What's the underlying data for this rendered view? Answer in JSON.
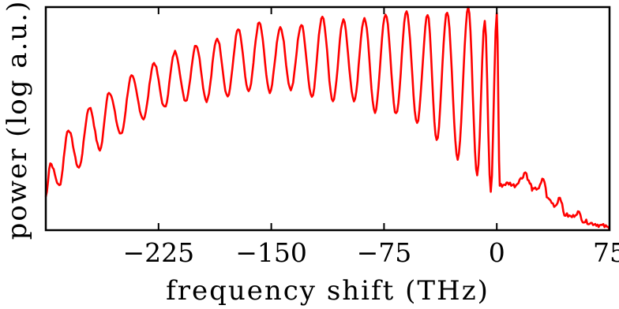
{
  "chart_data": {
    "type": "line",
    "xlabel": "frequency shift (THz)",
    "ylabel": "power (log a.u.)",
    "xlim": [
      -300,
      75
    ],
    "ylim": [
      0,
      1
    ],
    "x_ticks": [
      {
        "value": -225,
        "label": "−225"
      },
      {
        "value": -150,
        "label": "−150"
      },
      {
        "value": -75,
        "label": "−75"
      },
      {
        "value": 0,
        "label": "0"
      },
      {
        "value": 75,
        "label": "75"
      }
    ],
    "y_ticks": [],
    "grid": false,
    "legend": "none",
    "series": [
      {
        "color": "#ff0000",
        "peaks": [
          {
            "x": -297,
            "y": 0.3
          },
          {
            "x": -285,
            "y": 0.45
          },
          {
            "x": -271,
            "y": 0.55
          },
          {
            "x": -258,
            "y": 0.62
          },
          {
            "x": -243,
            "y": 0.69
          },
          {
            "x": -228,
            "y": 0.75
          },
          {
            "x": -214,
            "y": 0.8
          },
          {
            "x": -200,
            "y": 0.83
          },
          {
            "x": -186,
            "y": 0.86
          },
          {
            "x": -172,
            "y": 0.9
          },
          {
            "x": -158,
            "y": 0.93
          },
          {
            "x": -144,
            "y": 0.91
          },
          {
            "x": -130,
            "y": 0.92
          },
          {
            "x": -116,
            "y": 0.96
          },
          {
            "x": -102,
            "y": 0.94
          },
          {
            "x": -88,
            "y": 0.95
          },
          {
            "x": -74,
            "y": 0.97
          },
          {
            "x": -60,
            "y": 0.98
          },
          {
            "x": -46,
            "y": 0.97
          },
          {
            "x": -33,
            "y": 0.98
          },
          {
            "x": -19,
            "y": 1.0
          },
          {
            "x": -8,
            "y": 0.94
          },
          {
            "x": 0,
            "y": 0.97
          }
        ],
        "troughs": [
          {
            "x": -291,
            "y": 0.2
          },
          {
            "x": -278,
            "y": 0.28
          },
          {
            "x": -264,
            "y": 0.36
          },
          {
            "x": -250,
            "y": 0.43
          },
          {
            "x": -235,
            "y": 0.5
          },
          {
            "x": -221,
            "y": 0.55
          },
          {
            "x": -207,
            "y": 0.58
          },
          {
            "x": -193,
            "y": 0.58
          },
          {
            "x": -179,
            "y": 0.6
          },
          {
            "x": -165,
            "y": 0.62
          },
          {
            "x": -151,
            "y": 0.62
          },
          {
            "x": -137,
            "y": 0.63
          },
          {
            "x": -123,
            "y": 0.6
          },
          {
            "x": -109,
            "y": 0.58
          },
          {
            "x": -95,
            "y": 0.58
          },
          {
            "x": -81,
            "y": 0.53
          },
          {
            "x": -67,
            "y": 0.52
          },
          {
            "x": -53,
            "y": 0.48
          },
          {
            "x": -40,
            "y": 0.4
          },
          {
            "x": -26,
            "y": 0.32
          },
          {
            "x": -13,
            "y": 0.25
          },
          {
            "x": -4,
            "y": 0.17
          }
        ],
        "tail": [
          {
            "x": 2,
            "y": 0.2
          },
          {
            "x": 8,
            "y": 0.21
          },
          {
            "x": 12,
            "y": 0.2
          },
          {
            "x": 16,
            "y": 0.23
          },
          {
            "x": 19,
            "y": 0.26
          },
          {
            "x": 22,
            "y": 0.21
          },
          {
            "x": 24,
            "y": 0.18
          },
          {
            "x": 28,
            "y": 0.19
          },
          {
            "x": 31,
            "y": 0.23
          },
          {
            "x": 34,
            "y": 0.14
          },
          {
            "x": 39,
            "y": 0.11
          },
          {
            "x": 42,
            "y": 0.15
          },
          {
            "x": 45,
            "y": 0.07
          },
          {
            "x": 50,
            "y": 0.06
          },
          {
            "x": 54,
            "y": 0.08
          },
          {
            "x": 58,
            "y": 0.04
          },
          {
            "x": 64,
            "y": 0.03
          },
          {
            "x": 70,
            "y": 0.02
          },
          {
            "x": 75,
            "y": 0.01
          }
        ]
      }
    ]
  }
}
